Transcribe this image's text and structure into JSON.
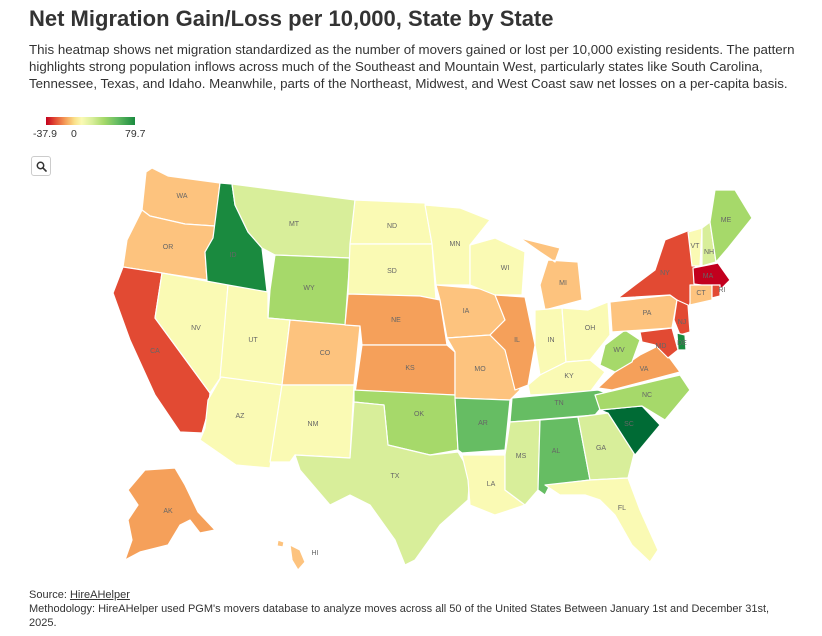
{
  "title": "Net Migration Gain/Loss per 10,000, State by State",
  "description": "This heatmap shows net migration standardized as the number of movers gained or lost per 10,000 existing residents. The pattern highlights strong population inflows across much of the Southeast and Mountain West, particularly states like South Carolina, Tennessee, Texas, and Idaho. Meanwhile, parts of the Northeast, Midwest, and West Coast saw net losses on a per-capita basis.",
  "legend": {
    "min_label": "-37.9",
    "mid_label": "0",
    "max_label": "79.7"
  },
  "icons": {
    "zoom": "search-icon"
  },
  "colors": {
    "strong_loss": "#c2001e",
    "loss": "#e24a33",
    "moderate_loss": "#f5a05a",
    "mild_loss": "#fdc37e",
    "neutral": "#fafab4",
    "mild_gain": "#d8ee9a",
    "gain": "#a6d96a",
    "strong_gain": "#66bd63",
    "very_strong_gain": "#1a8a3f",
    "top_gain": "#006b35"
  },
  "states": [
    {
      "abbr": "WA",
      "level": "mild_loss"
    },
    {
      "abbr": "OR",
      "level": "mild_loss"
    },
    {
      "abbr": "CA",
      "level": "loss"
    },
    {
      "abbr": "ID",
      "level": "very_strong_gain"
    },
    {
      "abbr": "NV",
      "level": "neutral"
    },
    {
      "abbr": "MT",
      "level": "mild_gain"
    },
    {
      "abbr": "WY",
      "level": "gain"
    },
    {
      "abbr": "UT",
      "level": "neutral"
    },
    {
      "abbr": "AZ",
      "level": "neutral"
    },
    {
      "abbr": "CO",
      "level": "mild_loss"
    },
    {
      "abbr": "NM",
      "level": "neutral"
    },
    {
      "abbr": "ND",
      "level": "neutral"
    },
    {
      "abbr": "SD",
      "level": "neutral"
    },
    {
      "abbr": "NE",
      "level": "moderate_loss"
    },
    {
      "abbr": "KS",
      "level": "moderate_loss"
    },
    {
      "abbr": "OK",
      "level": "gain"
    },
    {
      "abbr": "TX",
      "level": "mild_gain"
    },
    {
      "abbr": "MN",
      "level": "neutral"
    },
    {
      "abbr": "IA",
      "level": "mild_loss"
    },
    {
      "abbr": "MO",
      "level": "mild_loss"
    },
    {
      "abbr": "AR",
      "level": "strong_gain"
    },
    {
      "abbr": "LA",
      "level": "neutral"
    },
    {
      "abbr": "WI",
      "level": "neutral"
    },
    {
      "abbr": "IL",
      "level": "moderate_loss"
    },
    {
      "abbr": "MI",
      "level": "mild_loss"
    },
    {
      "abbr": "IN",
      "level": "neutral"
    },
    {
      "abbr": "OH",
      "level": "neutral"
    },
    {
      "abbr": "KY",
      "level": "neutral"
    },
    {
      "abbr": "TN",
      "level": "strong_gain"
    },
    {
      "abbr": "MS",
      "level": "mild_gain"
    },
    {
      "abbr": "AL",
      "level": "strong_gain"
    },
    {
      "abbr": "GA",
      "level": "mild_gain"
    },
    {
      "abbr": "FL",
      "level": "neutral"
    },
    {
      "abbr": "SC",
      "level": "top_gain"
    },
    {
      "abbr": "NC",
      "level": "gain"
    },
    {
      "abbr": "VA",
      "level": "moderate_loss"
    },
    {
      "abbr": "WV",
      "level": "gain"
    },
    {
      "abbr": "PA",
      "level": "mild_loss"
    },
    {
      "abbr": "NY",
      "level": "loss"
    },
    {
      "abbr": "NJ",
      "level": "loss"
    },
    {
      "abbr": "DE",
      "level": "very_strong_gain"
    },
    {
      "abbr": "MD",
      "level": "loss"
    },
    {
      "abbr": "VT",
      "level": "neutral"
    },
    {
      "abbr": "NH",
      "level": "mild_gain"
    },
    {
      "abbr": "ME",
      "level": "gain"
    },
    {
      "abbr": "MA",
      "level": "strong_loss"
    },
    {
      "abbr": "CT",
      "level": "mild_loss"
    },
    {
      "abbr": "RI",
      "level": "loss"
    },
    {
      "abbr": "AK",
      "level": "moderate_loss"
    },
    {
      "abbr": "HI",
      "level": "mild_loss"
    }
  ],
  "footer": {
    "source_prefix": "Source: ",
    "source_name": "HireAHelper",
    "methodology": "Methodology: HireAHelper used PGM's movers database to analyze moves across all 50 of the United States Between January 1st and December 31st, 2025."
  }
}
